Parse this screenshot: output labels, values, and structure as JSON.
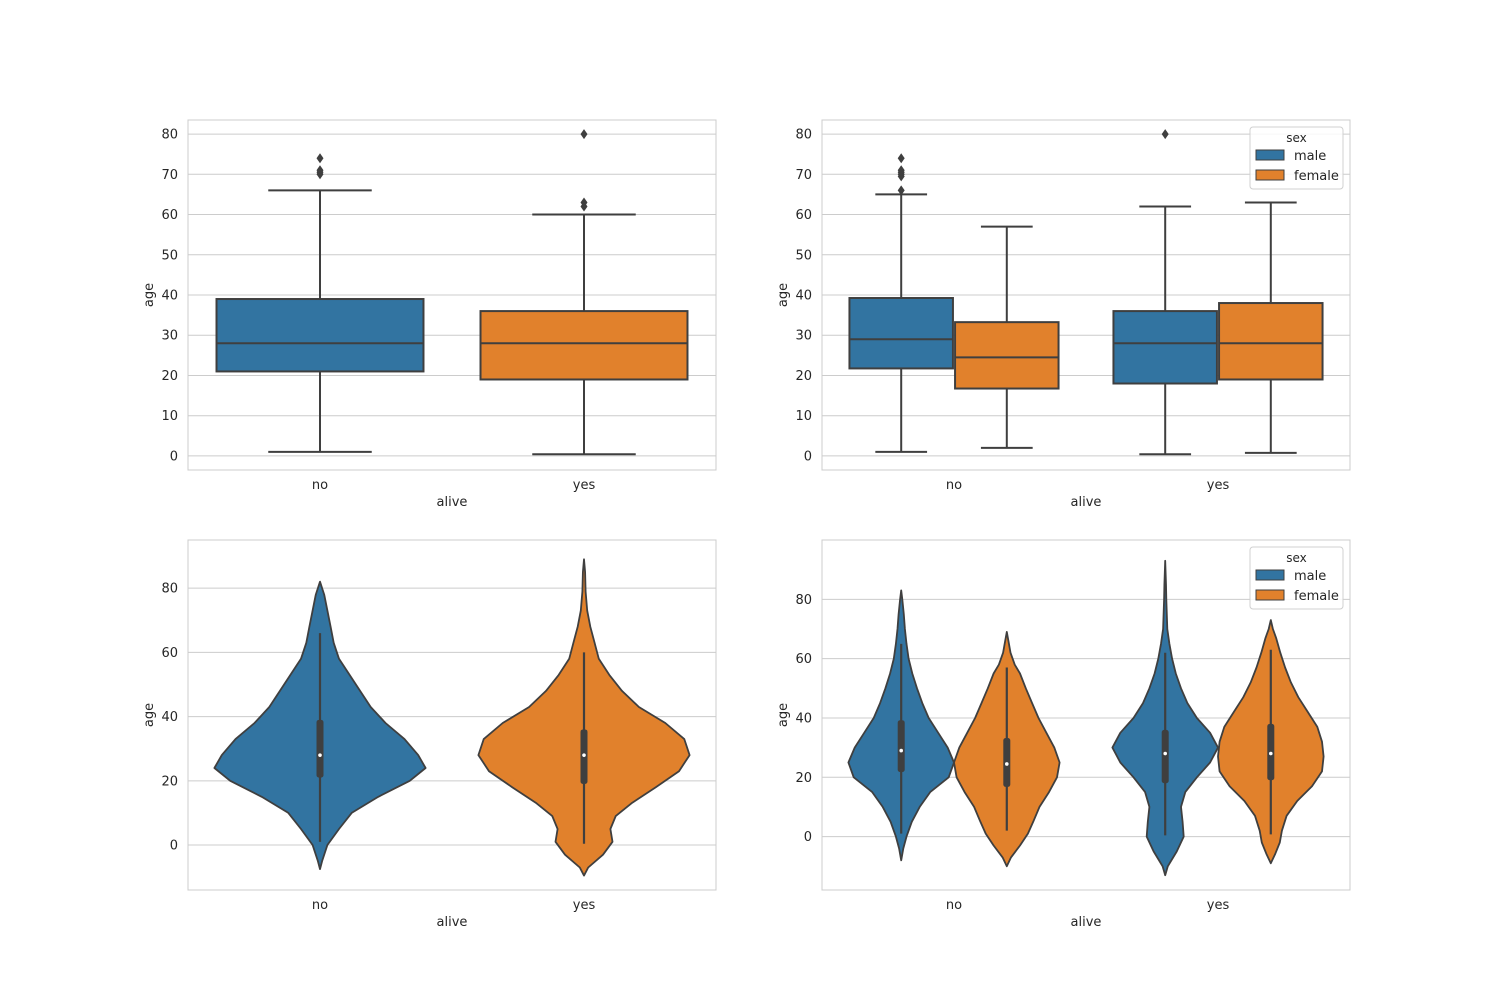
{
  "chart_data": [
    {
      "type": "box",
      "xlabel": "alive",
      "ylabel": "age",
      "categories": [
        "no",
        "yes"
      ],
      "ylim": [
        -3.5,
        83.5
      ],
      "yticks": [
        0,
        10,
        20,
        30,
        40,
        50,
        60,
        70,
        80
      ],
      "grid": true,
      "series": [
        {
          "color": "#3274a1",
          "boxes": [
            {
              "category": "no",
              "min": 1,
              "q1": 21,
              "median": 28,
              "q3": 39,
              "max": 66,
              "outliers": [
                70,
                70.5,
                71,
                74
              ]
            },
            null
          ]
        },
        {
          "color": "#e1812c",
          "boxes": [
            null,
            {
              "category": "yes",
              "min": 0.42,
              "q1": 19,
              "median": 28,
              "q3": 36,
              "max": 60,
              "outliers": [
                62,
                63,
                80
              ]
            }
          ]
        }
      ]
    },
    {
      "type": "box",
      "xlabel": "alive",
      "ylabel": "age",
      "categories": [
        "no",
        "yes"
      ],
      "ylim": [
        -3.5,
        83.5
      ],
      "yticks": [
        0,
        10,
        20,
        30,
        40,
        50,
        60,
        70,
        80
      ],
      "grid": true,
      "legend": {
        "title": "sex",
        "position": "top-right"
      },
      "series": [
        {
          "name": "male",
          "color": "#3274a1",
          "boxes": [
            {
              "category": "no",
              "min": 1,
              "q1": 21.75,
              "median": 29,
              "q3": 39.25,
              "max": 65,
              "outliers": [
                66,
                69.5,
                70,
                70.5,
                71,
                74
              ]
            },
            {
              "category": "yes",
              "min": 0.42,
              "q1": 18,
              "median": 28,
              "q3": 36,
              "max": 62,
              "outliers": [
                80
              ]
            }
          ]
        },
        {
          "name": "female",
          "color": "#e1812c",
          "boxes": [
            {
              "category": "no",
              "min": 2,
              "q1": 16.75,
              "median": 24.5,
              "q3": 33.25,
              "max": 57,
              "outliers": []
            },
            {
              "category": "yes",
              "min": 0.75,
              "q1": 19,
              "median": 28,
              "q3": 38,
              "max": 63,
              "outliers": []
            }
          ]
        }
      ]
    },
    {
      "type": "violin",
      "xlabel": "alive",
      "ylabel": "age",
      "categories": [
        "no",
        "yes"
      ],
      "ylim": [
        -14,
        95
      ],
      "yticks": [
        0,
        20,
        40,
        60,
        80
      ],
      "grid": true,
      "series": [
        {
          "color": "#3274a1",
          "violins": [
            {
              "category": "no",
              "min": 1,
              "q1": 21,
              "median": 28,
              "q3": 39,
              "max": 66,
              "density": [
                [
                  -7.5,
                  0
                ],
                [
                  -5,
                  0.02
                ],
                [
                  0,
                  0.07
                ],
                [
                  5,
                  0.18
                ],
                [
                  10,
                  0.3
                ],
                [
                  15,
                  0.55
                ],
                [
                  20,
                  0.85
                ],
                [
                  24,
                  1
                ],
                [
                  28,
                  0.93
                ],
                [
                  33,
                  0.8
                ],
                [
                  38,
                  0.62
                ],
                [
                  43,
                  0.48
                ],
                [
                  48,
                  0.38
                ],
                [
                  53,
                  0.28
                ],
                [
                  58,
                  0.18
                ],
                [
                  63,
                  0.13
                ],
                [
                  68,
                  0.1
                ],
                [
                  73,
                  0.07
                ],
                [
                  78,
                  0.04
                ],
                [
                  82,
                  0
                ]
              ]
            },
            null
          ]
        },
        {
          "color": "#e1812c",
          "violins": [
            null,
            {
              "category": "yes",
              "min": 0.42,
              "q1": 19,
              "median": 28,
              "q3": 36,
              "max": 60,
              "density": [
                [
                  -9.5,
                  0
                ],
                [
                  -7,
                  0.04
                ],
                [
                  -3,
                  0.18
                ],
                [
                  1,
                  0.27
                ],
                [
                  5,
                  0.25
                ],
                [
                  9,
                  0.3
                ],
                [
                  13,
                  0.45
                ],
                [
                  18,
                  0.68
                ],
                [
                  23,
                  0.9
                ],
                [
                  28,
                  1
                ],
                [
                  33,
                  0.95
                ],
                [
                  38,
                  0.77
                ],
                [
                  43,
                  0.52
                ],
                [
                  48,
                  0.36
                ],
                [
                  53,
                  0.24
                ],
                [
                  58,
                  0.14
                ],
                [
                  63,
                  0.1
                ],
                [
                  68,
                  0.06
                ],
                [
                  73,
                  0.03
                ],
                [
                  79,
                  0.015
                ],
                [
                  85,
                  0.01
                ],
                [
                  89,
                  0
                ]
              ]
            }
          ]
        }
      ]
    },
    {
      "type": "violin",
      "xlabel": "alive",
      "ylabel": "age",
      "categories": [
        "no",
        "yes"
      ],
      "ylim": [
        -18,
        100
      ],
      "yticks": [
        0,
        20,
        40,
        60,
        80
      ],
      "grid": true,
      "legend": {
        "title": "sex",
        "position": "top-right"
      },
      "series": [
        {
          "name": "male",
          "color": "#3274a1",
          "violins": [
            {
              "category": "no",
              "min": 1,
              "q1": 21.75,
              "median": 29,
              "q3": 39.25,
              "max": 65,
              "density": [
                [
                  -8,
                  0
                ],
                [
                  -4,
                  0.04
                ],
                [
                  0,
                  0.1
                ],
                [
                  5,
                  0.2
                ],
                [
                  10,
                  0.35
                ],
                [
                  15,
                  0.55
                ],
                [
                  20,
                  0.9
                ],
                [
                  25,
                  1
                ],
                [
                  30,
                  0.88
                ],
                [
                  35,
                  0.7
                ],
                [
                  40,
                  0.52
                ],
                [
                  45,
                  0.4
                ],
                [
                  50,
                  0.3
                ],
                [
                  55,
                  0.21
                ],
                [
                  60,
                  0.14
                ],
                [
                  65,
                  0.1
                ],
                [
                  70,
                  0.07
                ],
                [
                  75,
                  0.05
                ],
                [
                  80,
                  0.02
                ],
                [
                  83,
                  0
                ]
              ]
            },
            {
              "category": "yes",
              "min": 0.42,
              "q1": 18,
              "median": 28,
              "q3": 36,
              "max": 62,
              "density": [
                [
                  -13,
                  0
                ],
                [
                  -10,
                  0.05
                ],
                [
                  -5,
                  0.22
                ],
                [
                  0,
                  0.35
                ],
                [
                  5,
                  0.33
                ],
                [
                  10,
                  0.3
                ],
                [
                  15,
                  0.38
                ],
                [
                  20,
                  0.6
                ],
                [
                  25,
                  0.85
                ],
                [
                  30,
                  1
                ],
                [
                  35,
                  0.85
                ],
                [
                  40,
                  0.6
                ],
                [
                  45,
                  0.42
                ],
                [
                  50,
                  0.3
                ],
                [
                  55,
                  0.2
                ],
                [
                  60,
                  0.13
                ],
                [
                  65,
                  0.08
                ],
                [
                  70,
                  0.04
                ],
                [
                  75,
                  0.03
                ],
                [
                  80,
                  0.02
                ],
                [
                  85,
                  0.015
                ],
                [
                  93,
                  0
                ]
              ]
            }
          ]
        },
        {
          "name": "female",
          "color": "#e1812c",
          "violins": [
            {
              "category": "no",
              "min": 2,
              "q1": 16.75,
              "median": 24.5,
              "q3": 33.25,
              "max": 57,
              "density": [
                [
                  -10,
                  0
                ],
                [
                  -7,
                  0.08
                ],
                [
                  -3,
                  0.25
                ],
                [
                  1,
                  0.4
                ],
                [
                  5,
                  0.5
                ],
                [
                  10,
                  0.62
                ],
                [
                  15,
                  0.8
                ],
                [
                  20,
                  0.95
                ],
                [
                  25,
                  1
                ],
                [
                  30,
                  0.9
                ],
                [
                  35,
                  0.75
                ],
                [
                  40,
                  0.6
                ],
                [
                  45,
                  0.48
                ],
                [
                  50,
                  0.36
                ],
                [
                  55,
                  0.25
                ],
                [
                  58,
                  0.15
                ],
                [
                  62,
                  0.07
                ],
                [
                  66,
                  0.03
                ],
                [
                  69,
                  0
                ]
              ]
            },
            {
              "category": "yes",
              "min": 0.75,
              "q1": 19,
              "median": 28,
              "q3": 38,
              "max": 63,
              "density": [
                [
                  -9,
                  0
                ],
                [
                  -6,
                  0.08
                ],
                [
                  -2,
                  0.17
                ],
                [
                  2,
                  0.21
                ],
                [
                  7,
                  0.3
                ],
                [
                  12,
                  0.5
                ],
                [
                  17,
                  0.78
                ],
                [
                  22,
                  0.97
                ],
                [
                  27,
                  1
                ],
                [
                  32,
                  0.97
                ],
                [
                  37,
                  0.88
                ],
                [
                  42,
                  0.7
                ],
                [
                  47,
                  0.52
                ],
                [
                  52,
                  0.38
                ],
                [
                  57,
                  0.27
                ],
                [
                  62,
                  0.18
                ],
                [
                  67,
                  0.1
                ],
                [
                  70,
                  0.04
                ],
                [
                  73,
                  0
                ]
              ]
            }
          ]
        }
      ]
    }
  ]
}
